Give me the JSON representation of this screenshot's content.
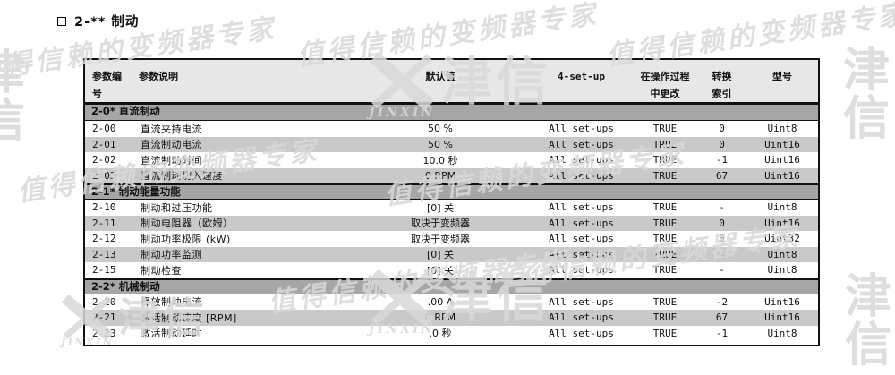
{
  "title": {
    "marker": "□",
    "text": "2-** 制动"
  },
  "watermark": {
    "script": "值得信赖的变频器专家",
    "logo_name": "JINXIN",
    "logo_cjk": "津信",
    "stack_top": "津",
    "stack_bottom": "信"
  },
  "table": {
    "headers": {
      "col_param_line1": "参数编",
      "col_param_line2": "号",
      "col_desc": "参数说明",
      "col_default": "默认值",
      "col_setup": "4-set-up",
      "col_change_line1": "在操作过程",
      "col_change_line2": "中更改",
      "col_conv_line1": "转换",
      "col_conv_line2": "索引",
      "col_type": "型号"
    },
    "sections": [
      {
        "title": "2-0* 直流制动",
        "rows": [
          {
            "id": "2-00",
            "desc": "直流夹持电流",
            "default": "50 %",
            "setup": "All set-ups",
            "change": "TRUE",
            "conv": "0",
            "type": "Uint8"
          },
          {
            "id": "2-01",
            "desc": "直流制动电流",
            "default": "50 %",
            "setup": "All set-ups",
            "change": "TRUE",
            "conv": "0",
            "type": "Uint16"
          },
          {
            "id": "2-02",
            "desc": "直流制动时间",
            "default": "10.0 秒",
            "setup": "All set-ups",
            "change": "TRUE",
            "conv": "-1",
            "type": "Uint16"
          },
          {
            "id": "2-03",
            "desc": "直流制动切入速度",
            "default": "0 RPM",
            "setup": "All set-ups",
            "change": "TRUE",
            "conv": "67",
            "type": "Uint16"
          }
        ]
      },
      {
        "title": "2-1* 制动能量功能",
        "rows": [
          {
            "id": "2-10",
            "desc": "制动和过压功能",
            "default": "[0] 关",
            "setup": "All set-ups",
            "change": "TRUE",
            "conv": "-",
            "type": "Uint8"
          },
          {
            "id": "2-11",
            "desc": "制动电阻器（欧姆）",
            "default": "取决于变频器",
            "setup": "All set-ups",
            "change": "TRUE",
            "conv": "0",
            "type": "Uint16"
          },
          {
            "id": "2-12",
            "desc": "制动功率极限 (kW)",
            "default": "取决于变频器",
            "setup": "All set-ups",
            "change": "TRUE",
            "conv": "0",
            "type": "Uint32"
          },
          {
            "id": "2-13",
            "desc": "制动功率监测",
            "default": "[0] 关",
            "setup": "All set-ups",
            "change": "TRUE",
            "conv": "-",
            "type": "Uint8"
          },
          {
            "id": "2-15",
            "desc": "制动检查",
            "default": "[0] 关",
            "setup": "All set-ups",
            "change": "TRUE",
            "conv": "-",
            "type": "Uint8"
          }
        ]
      },
      {
        "title": "2-2* 机械制动",
        "rows": [
          {
            "id": "2-20",
            "desc": "释放制动电流",
            "default": ".00 A",
            "setup": "All set-ups",
            "change": "TRUE",
            "conv": "-2",
            "type": "Uint16"
          },
          {
            "id": "2-21",
            "desc": "激活制动速度 [RPM]",
            "default": "0 RPM",
            "setup": "All set-ups",
            "change": "TRUE",
            "conv": "67",
            "type": "Uint16"
          },
          {
            "id": "2-23",
            "desc": "激活制动延时",
            "default": ".0 秒",
            "setup": "All set-ups",
            "change": "TRUE",
            "conv": "-1",
            "type": "Uint8"
          }
        ]
      }
    ]
  },
  "colors": {
    "section_band": "#a6a6a6",
    "row_alt": "#c9c9c9",
    "header_bg": "#e7e7e7",
    "watermark": "#d9d9d9",
    "border": "#111111"
  }
}
